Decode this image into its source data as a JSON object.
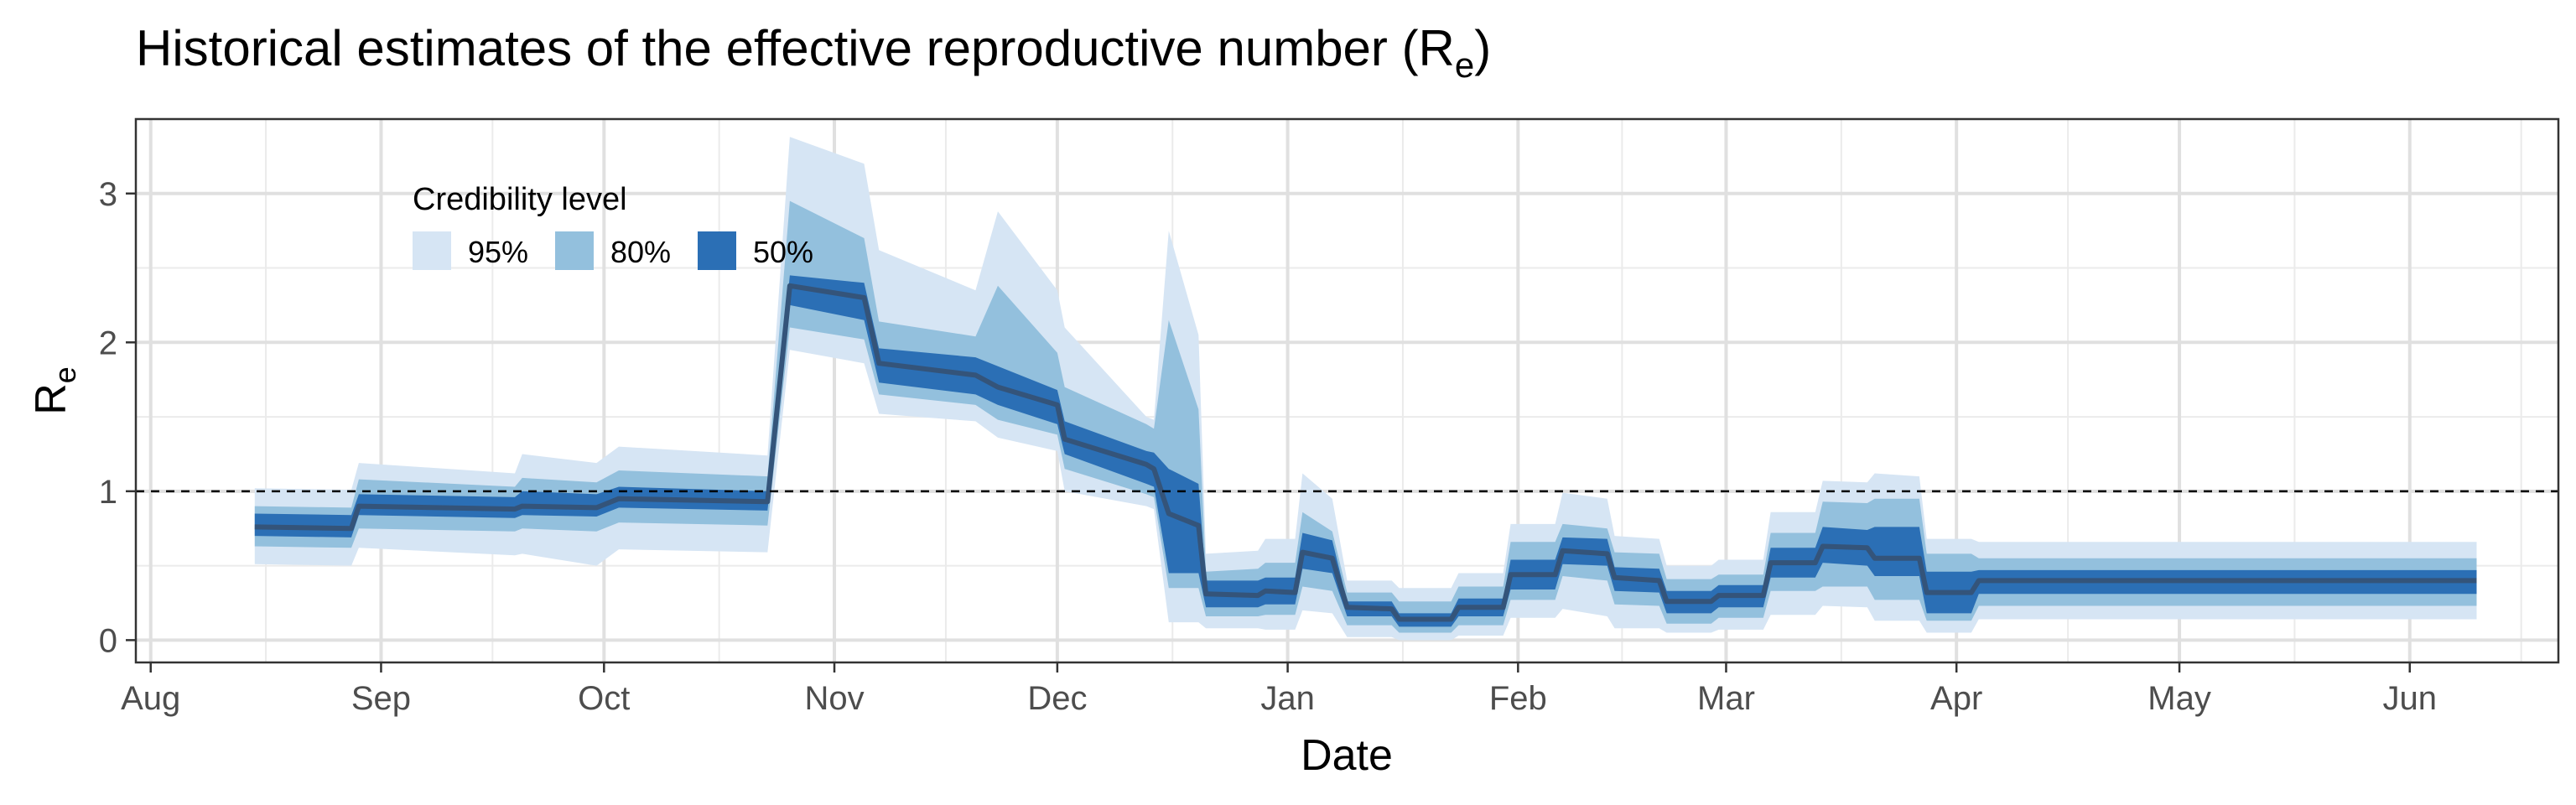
{
  "chart_data": {
    "type": "area",
    "title": "Historical estimates of the effective reproductive number (R",
    "title_subscript": "e",
    "title_suffix": ")",
    "xlabel": "Date",
    "ylabel_main": "R",
    "ylabel_sub": "e",
    "x_axis": {
      "type": "date",
      "ticks": [
        {
          "date": "2020-08-01",
          "label": "Aug"
        },
        {
          "date": "2020-09-01",
          "label": "Sep"
        },
        {
          "date": "2020-10-01",
          "label": "Oct"
        },
        {
          "date": "2020-11-01",
          "label": "Nov"
        },
        {
          "date": "2020-12-01",
          "label": "Dec"
        },
        {
          "date": "2021-01-01",
          "label": "Jan"
        },
        {
          "date": "2021-02-01",
          "label": "Feb"
        },
        {
          "date": "2021-03-01",
          "label": "Mar"
        },
        {
          "date": "2021-04-01",
          "label": "Apr"
        },
        {
          "date": "2021-05-01",
          "label": "May"
        },
        {
          "date": "2021-06-01",
          "label": "Jun"
        }
      ],
      "range": [
        "2020-07-30",
        "2021-06-21"
      ]
    },
    "y_axis": {
      "ticks": [
        0,
        1,
        2,
        3
      ],
      "range": [
        -0.15,
        3.5
      ]
    },
    "reference_line": 1,
    "grid": true,
    "legend": {
      "title": "Credibility level",
      "placement": "top-left",
      "items": [
        {
          "label": "95%",
          "color": "#d6e5f4"
        },
        {
          "label": "80%",
          "color": "#93c0dd"
        },
        {
          "label": "50%",
          "color": "#2b6fb5"
        }
      ]
    },
    "colors": {
      "line": "#34547a",
      "ci95": "#d6e5f4",
      "ci80": "#93c0dd",
      "ci50": "#2b6fb5",
      "refline": "#000000"
    },
    "series": [
      {
        "date": [
          "2020-08-15",
          "2020-08-28",
          "2020-08-29",
          "2020-09-19",
          "2020-09-20",
          "2020-09-30",
          "2020-10-03",
          "2020-10-23",
          "2020-10-26",
          "2020-11-05",
          "2020-11-07",
          "2020-11-20",
          "2020-11-23",
          "2020-12-01",
          "2020-12-02",
          "2020-12-13",
          "2020-12-14",
          "2020-12-16",
          "2020-12-20",
          "2020-12-21",
          "2020-12-28",
          "2020-12-29",
          "2021-01-02",
          "2021-01-03",
          "2021-01-07",
          "2021-01-09",
          "2021-01-15",
          "2021-01-16",
          "2021-01-23",
          "2021-01-24",
          "2021-01-30",
          "2021-01-31",
          "2021-02-06",
          "2021-02-07",
          "2021-02-13",
          "2021-02-14",
          "2021-02-20",
          "2021-02-21",
          "2021-02-27",
          "2021-02-28",
          "2021-03-06",
          "2021-03-07",
          "2021-03-13",
          "2021-03-14",
          "2021-03-20",
          "2021-03-21",
          "2021-03-27",
          "2021-03-28",
          "2021-04-03",
          "2021-04-04",
          "2021-06-10"
        ],
        "median": [
          0.76,
          0.75,
          0.9,
          0.88,
          0.9,
          0.89,
          0.95,
          0.93,
          2.38,
          2.3,
          1.86,
          1.78,
          1.7,
          1.58,
          1.35,
          1.18,
          1.15,
          0.85,
          0.77,
          0.31,
          0.3,
          0.33,
          0.32,
          0.59,
          0.55,
          0.22,
          0.21,
          0.14,
          0.14,
          0.22,
          0.22,
          0.44,
          0.44,
          0.6,
          0.58,
          0.42,
          0.4,
          0.26,
          0.26,
          0.3,
          0.3,
          0.52,
          0.52,
          0.63,
          0.62,
          0.55,
          0.55,
          0.32,
          0.32,
          0.4,
          0.4
        ],
        "lo50": [
          0.7,
          0.69,
          0.84,
          0.82,
          0.84,
          0.83,
          0.89,
          0.87,
          2.25,
          2.15,
          1.73,
          1.65,
          1.58,
          1.45,
          1.25,
          1.05,
          1.03,
          0.45,
          0.45,
          0.22,
          0.22,
          0.24,
          0.24,
          0.48,
          0.45,
          0.16,
          0.16,
          0.09,
          0.09,
          0.16,
          0.16,
          0.34,
          0.34,
          0.51,
          0.5,
          0.33,
          0.32,
          0.18,
          0.18,
          0.22,
          0.22,
          0.42,
          0.42,
          0.52,
          0.5,
          0.43,
          0.43,
          0.18,
          0.18,
          0.31,
          0.31
        ],
        "hi50": [
          0.85,
          0.84,
          0.98,
          0.96,
          1.0,
          0.98,
          1.03,
          1.0,
          2.45,
          2.4,
          1.96,
          1.9,
          1.84,
          1.68,
          1.47,
          1.27,
          1.26,
          1.15,
          1.05,
          0.4,
          0.4,
          0.42,
          0.42,
          0.72,
          0.67,
          0.26,
          0.26,
          0.18,
          0.18,
          0.28,
          0.28,
          0.54,
          0.54,
          0.69,
          0.68,
          0.49,
          0.48,
          0.33,
          0.33,
          0.37,
          0.37,
          0.62,
          0.62,
          0.76,
          0.74,
          0.76,
          0.76,
          0.46,
          0.46,
          0.47,
          0.47
        ],
        "lo80": [
          0.63,
          0.62,
          0.75,
          0.73,
          0.75,
          0.73,
          0.79,
          0.77,
          2.1,
          2.02,
          1.65,
          1.58,
          1.48,
          1.38,
          1.15,
          0.98,
          0.96,
          0.35,
          0.35,
          0.16,
          0.16,
          0.17,
          0.17,
          0.36,
          0.33,
          0.1,
          0.1,
          0.05,
          0.05,
          0.1,
          0.1,
          0.27,
          0.27,
          0.43,
          0.4,
          0.24,
          0.23,
          0.11,
          0.11,
          0.15,
          0.15,
          0.33,
          0.33,
          0.36,
          0.36,
          0.27,
          0.27,
          0.13,
          0.13,
          0.23,
          0.23
        ],
        "hi80": [
          0.9,
          0.89,
          1.08,
          1.03,
          1.09,
          1.06,
          1.14,
          1.1,
          2.95,
          2.7,
          2.14,
          2.04,
          2.38,
          1.93,
          1.7,
          1.45,
          1.42,
          2.15,
          1.55,
          0.46,
          0.48,
          0.52,
          0.52,
          0.86,
          0.73,
          0.32,
          0.32,
          0.26,
          0.26,
          0.36,
          0.36,
          0.66,
          0.66,
          0.78,
          0.75,
          0.59,
          0.58,
          0.41,
          0.41,
          0.44,
          0.44,
          0.72,
          0.72,
          0.93,
          0.92,
          0.95,
          0.95,
          0.58,
          0.58,
          0.55,
          0.55
        ],
        "lo95": [
          0.51,
          0.5,
          0.62,
          0.57,
          0.58,
          0.5,
          0.61,
          0.59,
          1.95,
          1.86,
          1.52,
          1.47,
          1.36,
          1.27,
          1.0,
          0.9,
          0.88,
          0.12,
          0.12,
          0.08,
          0.08,
          0.07,
          0.07,
          0.2,
          0.18,
          0.02,
          0.02,
          0.0,
          0.0,
          0.03,
          0.03,
          0.15,
          0.15,
          0.21,
          0.16,
          0.08,
          0.08,
          0.05,
          0.05,
          0.07,
          0.07,
          0.17,
          0.17,
          0.23,
          0.22,
          0.13,
          0.13,
          0.05,
          0.05,
          0.14,
          0.14
        ],
        "hi95": [
          1.02,
          1.01,
          1.19,
          1.12,
          1.25,
          1.19,
          1.3,
          1.24,
          3.38,
          3.2,
          2.62,
          2.35,
          2.88,
          2.35,
          2.1,
          1.5,
          1.48,
          2.75,
          2.05,
          0.58,
          0.6,
          0.68,
          0.68,
          1.12,
          0.95,
          0.4,
          0.4,
          0.35,
          0.35,
          0.45,
          0.45,
          0.78,
          0.78,
          0.99,
          0.95,
          0.7,
          0.68,
          0.5,
          0.5,
          0.54,
          0.54,
          0.86,
          0.86,
          1.07,
          1.06,
          1.12,
          1.1,
          0.68,
          0.68,
          0.66,
          0.66
        ]
      }
    ]
  }
}
